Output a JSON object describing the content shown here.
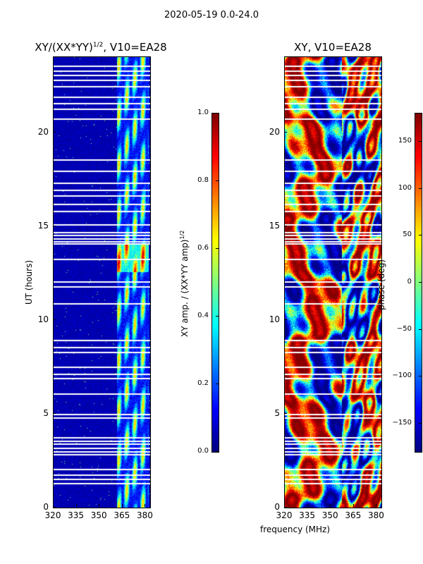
{
  "figure": {
    "suptitle": "2020-05-19 0.0-24.0",
    "xlabel": "frequency (MHz)"
  },
  "chart_data": [
    {
      "type": "heatmap",
      "title_main": "XY/(XX*YY)",
      "title_sup": "1/2",
      "title_suffix": ", V10=EA28",
      "x_ticks": [
        "320",
        "335",
        "350",
        "365",
        "380"
      ],
      "x_tick_values": [
        320,
        335,
        350,
        365,
        380
      ],
      "xlim": [
        320,
        383
      ],
      "y_ticks": [
        "0",
        "5",
        "10",
        "15",
        "20"
      ],
      "y_tick_values": [
        0,
        5,
        10,
        15,
        20
      ],
      "ylim": [
        0,
        24
      ],
      "ylabel": "UT (hours)",
      "colorbar": {
        "label_main": "XY amp. / (XX*YY amp)",
        "label_sup": "1/2",
        "range": [
          0.0,
          1.0
        ],
        "ticks": [
          "0.0",
          "0.2",
          "0.4",
          "0.6",
          "0.8",
          "1.0"
        ],
        "tick_values": [
          0.0,
          0.2,
          0.4,
          0.6,
          0.8,
          1.0
        ],
        "colormap": "jet"
      },
      "high_band_mhz": [
        361,
        382
      ],
      "flagged_hours": [
        1.3,
        1.55,
        1.75,
        2.05,
        2.85,
        3.0,
        3.2,
        3.4,
        3.55,
        3.75,
        4.8,
        5.0,
        6.1,
        6.9,
        7.15,
        7.5,
        8.3,
        8.55,
        8.95,
        10.9,
        11.8,
        12.05,
        13.25,
        14.1,
        14.2,
        14.35,
        14.55,
        14.7,
        15.1,
        15.8,
        16.2,
        16.65,
        16.95,
        17.3,
        17.95,
        18.55,
        20.75,
        21.25,
        21.55,
        21.9,
        22.45,
        22.8,
        23.05,
        23.3,
        23.55
      ]
    },
    {
      "type": "heatmap",
      "title_main": "XY, V10=EA28",
      "x_ticks": [
        "320",
        "335",
        "350",
        "365",
        "380"
      ],
      "x_tick_values": [
        320,
        335,
        350,
        365,
        380
      ],
      "xlim": [
        320,
        383
      ],
      "y_ticks": [
        "0",
        "5",
        "10",
        "15",
        "20"
      ],
      "y_tick_values": [
        0,
        5,
        10,
        15,
        20
      ],
      "ylim": [
        0,
        24
      ],
      "colorbar": {
        "label_main": "phase (deg)",
        "range": [
          -180,
          180
        ],
        "ticks": [
          "150",
          "100",
          "50",
          "0",
          "−50",
          "−100",
          "−150"
        ],
        "tick_values": [
          150,
          100,
          50,
          0,
          -50,
          -100,
          -150
        ],
        "colormap": "jet"
      },
      "flagged_hours": [
        1.3,
        1.55,
        1.75,
        2.05,
        2.85,
        3.0,
        3.2,
        3.4,
        3.55,
        3.75,
        4.8,
        5.0,
        6.1,
        6.9,
        7.15,
        7.5,
        8.3,
        8.55,
        8.95,
        10.9,
        11.8,
        12.05,
        13.25,
        14.1,
        14.2,
        14.35,
        14.55,
        14.7,
        15.1,
        15.8,
        16.2,
        16.65,
        16.95,
        17.3,
        17.95,
        18.55,
        20.75,
        21.25,
        21.55,
        21.9,
        22.45,
        22.8,
        23.05,
        23.3,
        23.55
      ]
    }
  ]
}
